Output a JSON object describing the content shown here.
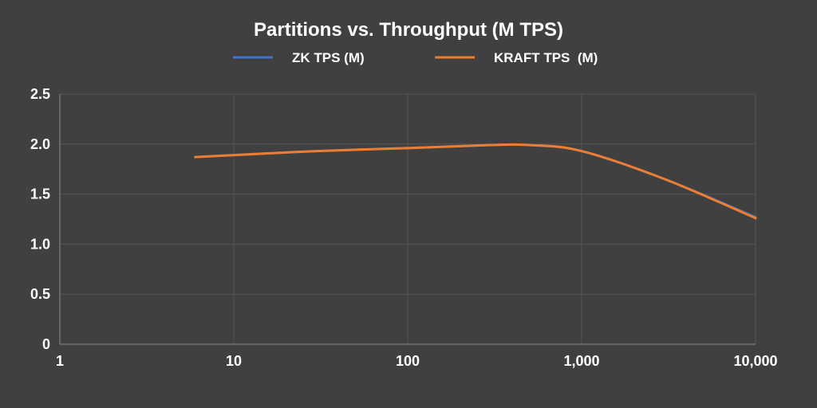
{
  "chart_data": {
    "type": "line",
    "title": "Partitions vs. Throughput (M TPS)",
    "xscale": "log",
    "xlim": [
      1,
      10000
    ],
    "ylim": [
      0,
      2.5
    ],
    "x_ticks": [
      "1",
      "10",
      "100",
      "1,000",
      "10,000"
    ],
    "y_ticks": [
      "0",
      "0.5",
      "1.0",
      "1.5",
      "2.0",
      "2.5"
    ],
    "grid": true,
    "legend_position": "top",
    "series": [
      {
        "name": "ZK TPS (M)",
        "color": "#4472C4",
        "x": [
          6,
          10,
          30,
          100,
          300,
          500,
          1000,
          3000,
          10000
        ],
        "y": [
          1.87,
          1.89,
          1.93,
          1.96,
          1.99,
          1.99,
          1.93,
          1.65,
          1.27
        ]
      },
      {
        "name": "KRAFT TPS  (M)",
        "color": "#ED7D31",
        "x": [
          6,
          10,
          30,
          100,
          300,
          500,
          1000,
          3000,
          10000
        ],
        "y": [
          1.87,
          1.89,
          1.93,
          1.96,
          1.99,
          1.99,
          1.93,
          1.65,
          1.26
        ]
      }
    ]
  }
}
